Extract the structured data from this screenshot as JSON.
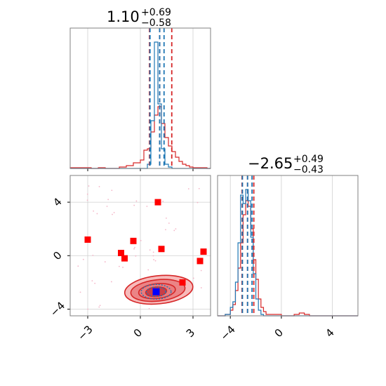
{
  "chart_data": {
    "type": "corner",
    "parameters": [
      {
        "title_value": "1.10",
        "title_plus": "+0.69",
        "title_minus": "−0.58",
        "range": [
          -4.0,
          4.0
        ],
        "ticks": [
          -3,
          0,
          3
        ],
        "tick_labels": [
          "−3",
          "0",
          "3"
        ],
        "lines_red": [
          0.52,
          1.1,
          1.79
        ],
        "lines_blue": [
          0.55,
          1.1,
          1.35
        ]
      },
      {
        "title_value": "−2.65",
        "title_plus": "+0.49",
        "title_minus": "−0.43",
        "range": [
          -5.0,
          6.0
        ],
        "ticks": [
          -4,
          0,
          4
        ],
        "tick_labels": [
          "−4",
          "0",
          "4"
        ],
        "lines_red": [
          -3.08,
          -2.65,
          -2.16
        ],
        "lines_blue": [
          -3.05,
          -2.65,
          -2.3
        ]
      }
    ],
    "hist1_x": {
      "bins": [
        -4.0,
        -3.6,
        -3.2,
        -2.8,
        -2.4,
        -2.0,
        -1.6,
        -1.2,
        -0.8,
        -0.4,
        0.0,
        0.2,
        0.4,
        0.6,
        0.8,
        1.0,
        1.2,
        1.4,
        1.6,
        1.8,
        2.0,
        2.2,
        2.4,
        2.6,
        2.8,
        3.0,
        3.4,
        3.8,
        4.0
      ],
      "red": [
        0.005,
        0.005,
        0.005,
        0.0,
        0.005,
        0.0,
        0.0,
        0.01,
        0.02,
        0.04,
        0.06,
        0.13,
        0.14,
        0.26,
        0.38,
        0.44,
        0.32,
        0.22,
        0.16,
        0.12,
        0.08,
        0.05,
        0.03,
        0.02,
        0.01,
        0.005,
        0.005,
        0.0
      ],
      "blue": [
        0,
        0,
        0,
        0,
        0,
        0,
        0,
        0,
        0,
        0,
        0,
        0,
        0.03,
        0.34,
        0.9,
        0.46,
        0.14,
        0.03,
        0.01,
        0,
        0,
        0,
        0,
        0,
        0,
        0,
        0,
        0
      ]
    },
    "hist2_x": {
      "bins": [
        -5.0,
        -4.4,
        -4.0,
        -3.8,
        -3.6,
        -3.4,
        -3.2,
        -3.0,
        -2.8,
        -2.6,
        -2.4,
        -2.2,
        -2.0,
        -1.8,
        -1.6,
        -1.4,
        -1.2,
        0.0,
        1.0,
        1.4,
        1.8,
        2.2,
        6.0
      ],
      "red": [
        0.0,
        0.01,
        0.04,
        0.08,
        0.18,
        0.34,
        0.52,
        0.72,
        0.82,
        0.78,
        0.62,
        0.4,
        0.26,
        0.12,
        0.06,
        0.03,
        0.01,
        0.0,
        0.01,
        0.02,
        0.01,
        0.0
      ],
      "blue": [
        0.0,
        0.01,
        0.06,
        0.1,
        0.24,
        0.52,
        0.86,
        0.8,
        0.9,
        0.82,
        0.56,
        0.3,
        0.12,
        0.04,
        0.01,
        0.0,
        0.0,
        0.0,
        0.0,
        0.0,
        0.0,
        0.0
      ]
    },
    "scatter_points": [
      {
        "x": 1.0,
        "y": 4.0
      },
      {
        "x": -3.0,
        "y": 1.2
      },
      {
        "x": -0.4,
        "y": 1.1
      },
      {
        "x": -1.1,
        "y": 0.2
      },
      {
        "x": -0.9,
        "y": -0.2
      },
      {
        "x": 1.2,
        "y": 0.5
      },
      {
        "x": 3.6,
        "y": 0.3
      },
      {
        "x": 3.4,
        "y": -0.4
      },
      {
        "x": 2.4,
        "y": -2.0
      }
    ],
    "best_fit": {
      "x": 0.9,
      "y": -2.7
    },
    "contours": [
      {
        "cx": 1.05,
        "cy": -2.55,
        "rx": 1.95,
        "ry": 1.05
      },
      {
        "cx": 1.0,
        "cy": -2.6,
        "rx": 1.55,
        "ry": 0.8
      },
      {
        "cx": 0.95,
        "cy": -2.65,
        "rx": 1.05,
        "ry": 0.55
      },
      {
        "cx": 0.9,
        "cy": -2.7,
        "rx": 0.6,
        "ry": 0.35
      }
    ],
    "blue_contours": [
      {
        "cx": 0.9,
        "cy": -2.7,
        "rx": 0.85,
        "ry": 0.55
      },
      {
        "cx": 0.9,
        "cy": -2.7,
        "rx": 0.55,
        "ry": 0.35
      }
    ],
    "grid": true,
    "colors": {
      "red": "#d62728",
      "blue": "#1f77b4",
      "marker": "#ff0000",
      "best": "#0000ff",
      "fill": "#f6b3b3"
    }
  }
}
